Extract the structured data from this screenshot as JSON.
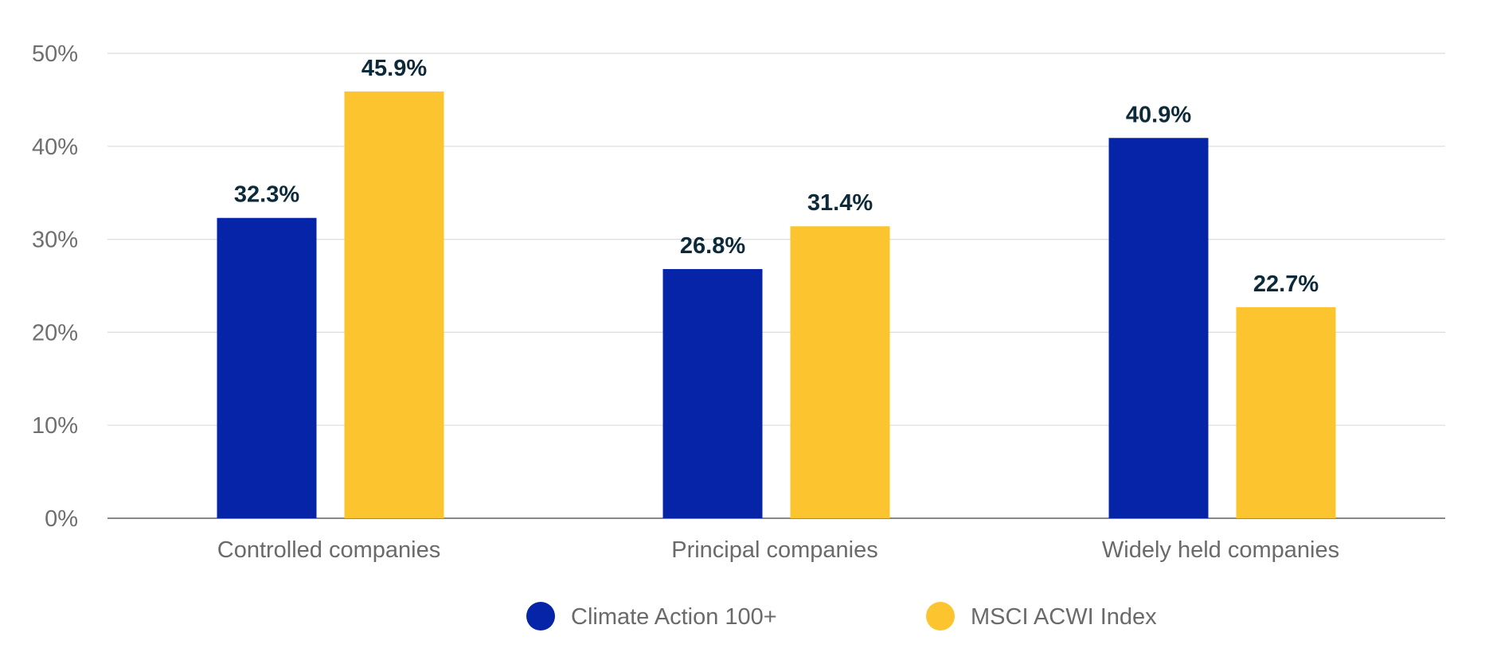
{
  "chart_data": {
    "type": "bar",
    "title": "",
    "xlabel": "",
    "ylabel": "",
    "ylim": [
      0,
      50
    ],
    "yticks": [
      "0%",
      "10%",
      "20%",
      "30%",
      "40%",
      "50%"
    ],
    "grid": true,
    "legend_placement": "bottom-center",
    "categories": [
      "Controlled companies",
      "Principal companies",
      "Widely held companies"
    ],
    "series": [
      {
        "name": "Climate Action 100+",
        "color": "#0524A8",
        "values": [
          32.3,
          26.8,
          40.9
        ],
        "labels": [
          "32.3%",
          "26.8%",
          "40.9%"
        ]
      },
      {
        "name": "MSCI ACWI Index",
        "color": "#FCC42E",
        "values": [
          45.9,
          31.4,
          22.7
        ],
        "labels": [
          "45.9%",
          "31.4%",
          "22.7%"
        ]
      }
    ]
  }
}
